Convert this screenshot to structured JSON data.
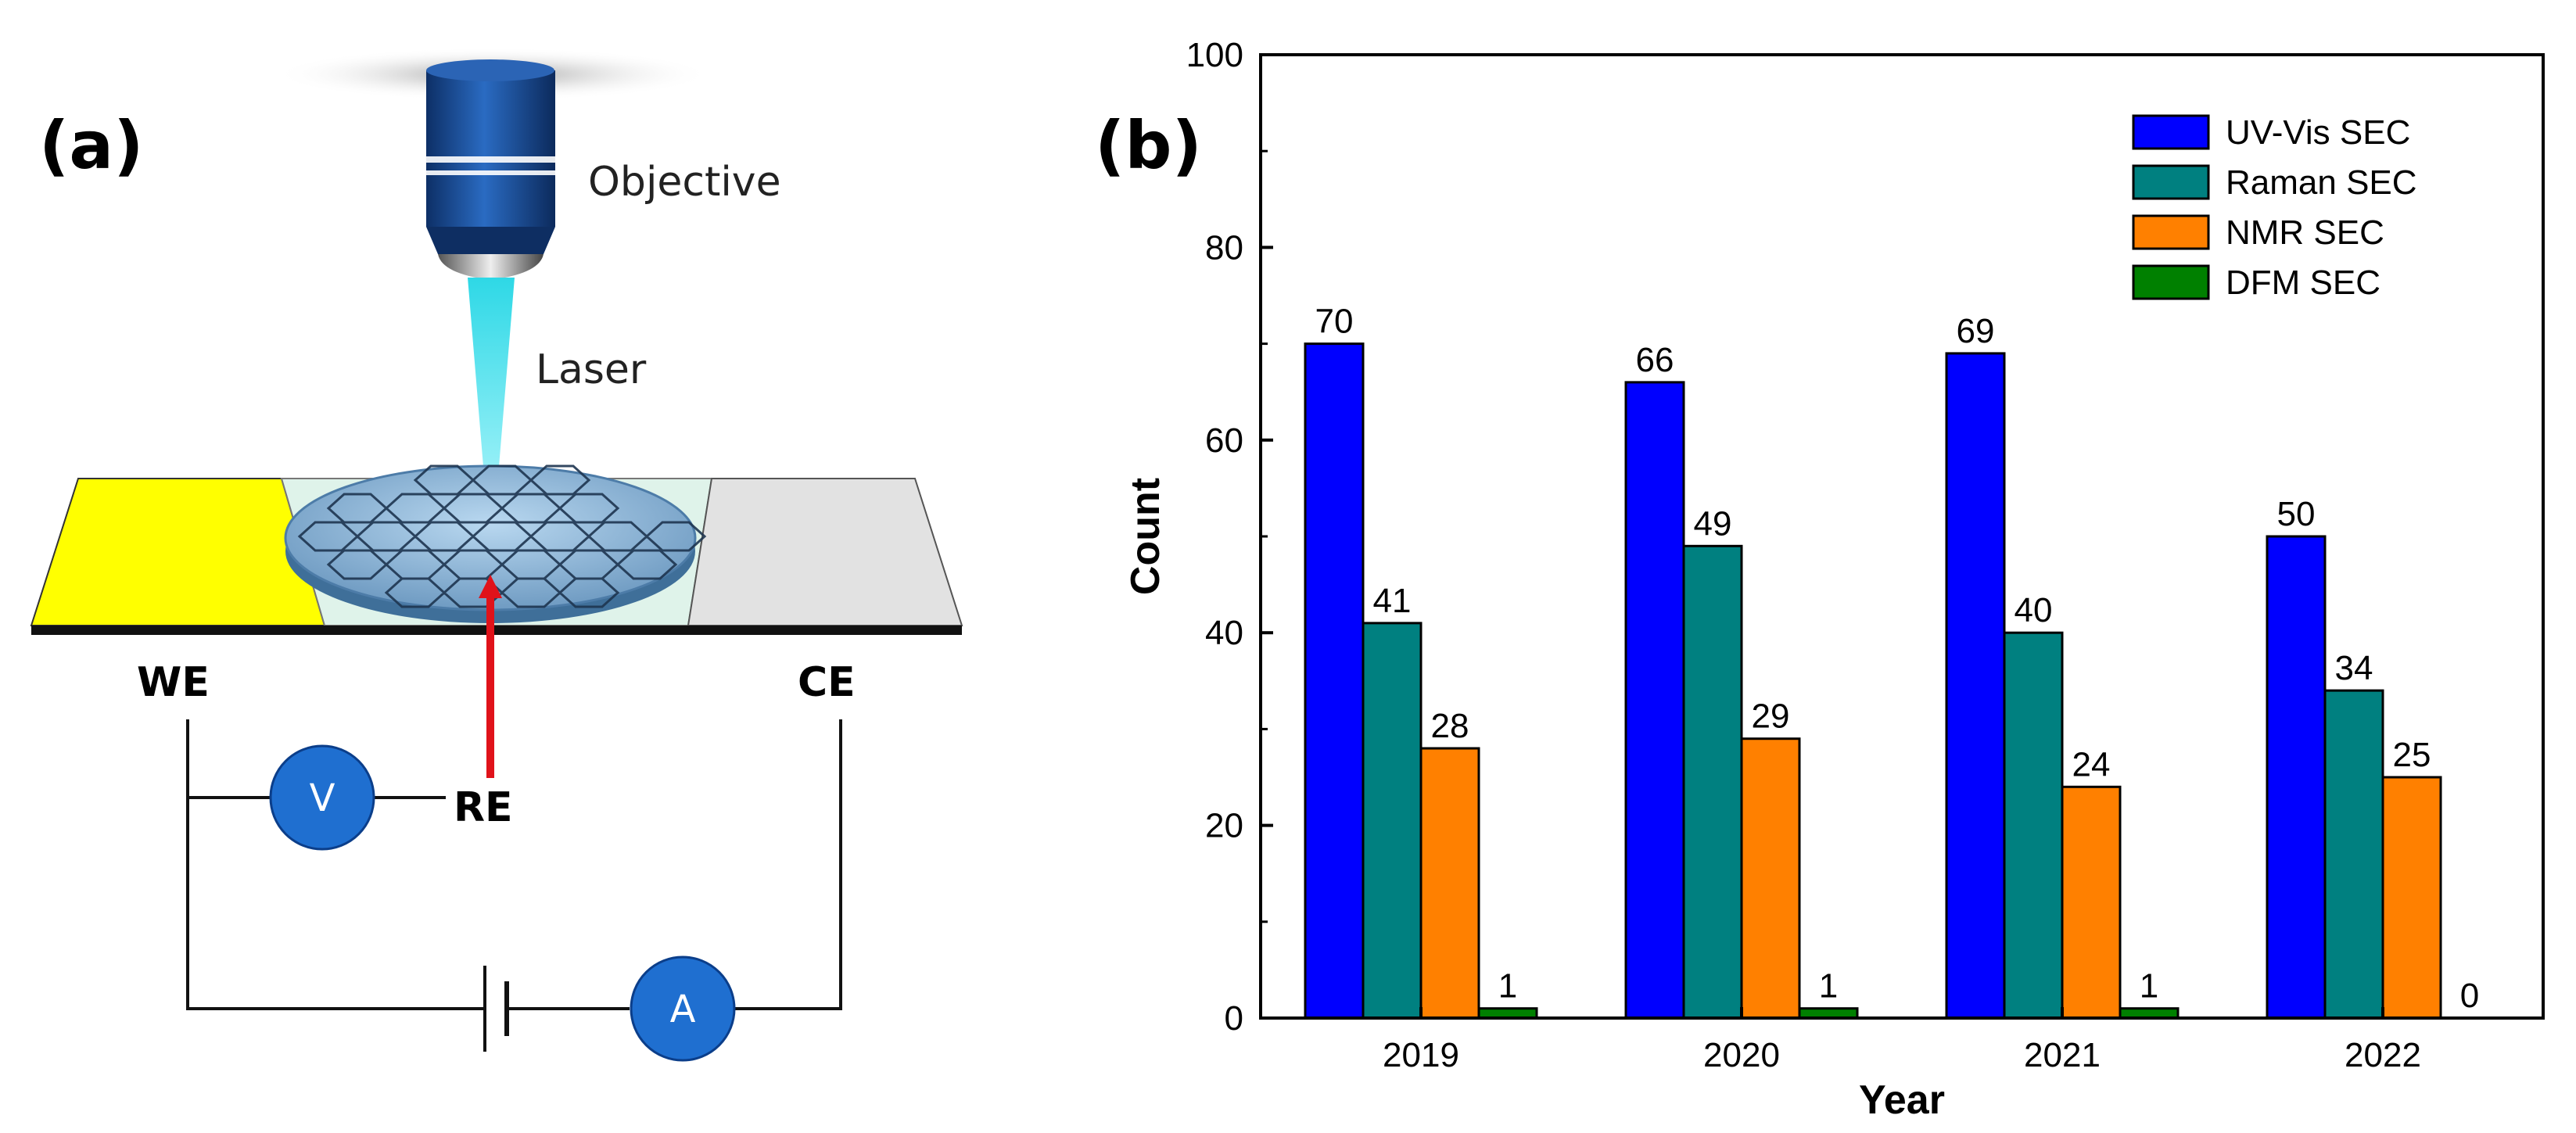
{
  "panel_a": {
    "label": "(a)",
    "objective_label": "Objective",
    "laser_label": "Laser",
    "we_label": "WE",
    "ce_label": "CE",
    "re_label": "RE",
    "voltmeter_label": "V",
    "ammeter_label": "A",
    "colors": {
      "objective": "#1f4e8c",
      "laser": "#2ed8e6",
      "working_electrode": "#ffff00",
      "counter_electrode": "#e2e2e2",
      "meter": "#1f6fd0",
      "reference_arrow": "#e0121a"
    }
  },
  "panel_b": {
    "label": "(b)"
  },
  "chart_data": {
    "type": "bar",
    "categories": [
      "2019",
      "2020",
      "2021",
      "2022"
    ],
    "series": [
      {
        "name": "UV-Vis SEC",
        "color": "#0000ff",
        "values": [
          70,
          66,
          69,
          50
        ]
      },
      {
        "name": "Raman SEC",
        "color": "#008080",
        "values": [
          41,
          49,
          40,
          34
        ]
      },
      {
        "name": "NMR SEC",
        "color": "#ff8000",
        "values": [
          28,
          29,
          24,
          25
        ]
      },
      {
        "name": "DFM SEC",
        "color": "#008000",
        "values": [
          1,
          1,
          1,
          0
        ]
      }
    ],
    "data_labels": [
      [
        "70",
        "41",
        "28",
        "1"
      ],
      [
        "66",
        "49",
        "29",
        "1"
      ],
      [
        "69",
        "40",
        "24",
        "1"
      ],
      [
        "50",
        "34",
        "25",
        "0"
      ]
    ],
    "yticks": [
      "0",
      "20",
      "40",
      "60",
      "80",
      "100"
    ],
    "xlabel": "Year",
    "ylabel": "Count",
    "ylim": [
      0,
      100
    ],
    "legend_position": "top-right"
  }
}
